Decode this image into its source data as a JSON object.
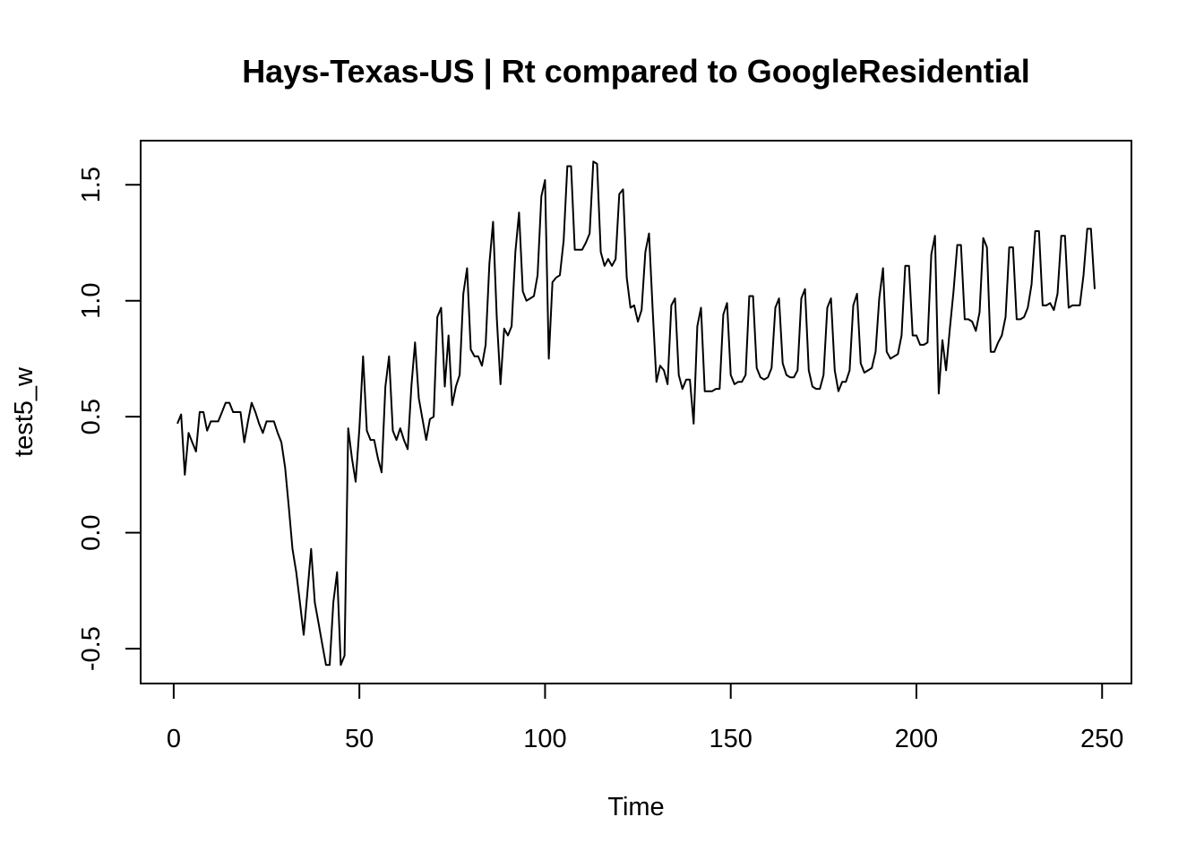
{
  "chart_data": {
    "type": "line",
    "title": "Hays-Texas-US | Rt compared to GoogleResidential",
    "xlabel": "Time",
    "ylabel": "test5_w",
    "xlim": [
      -8.9,
      257.9
    ],
    "ylim": [
      -0.65,
      1.69
    ],
    "xticks": [
      0,
      50,
      100,
      150,
      200,
      250
    ],
    "yticks": [
      -0.5,
      0.0,
      0.5,
      1.0,
      1.5
    ],
    "xtick_labels": [
      "0",
      "50",
      "100",
      "150",
      "200",
      "250"
    ],
    "ytick_labels": [
      "-0.5",
      "0.0",
      "0.5",
      "1.0",
      "1.5"
    ],
    "grid": false,
    "legend": "none",
    "series": [
      {
        "x": [
          1,
          2,
          3,
          4,
          5,
          6,
          7,
          8,
          9,
          10,
          11,
          12,
          13,
          14,
          15,
          16,
          17,
          18,
          19,
          20,
          21,
          22,
          23,
          24,
          25,
          26,
          27,
          28,
          29,
          30,
          31,
          32,
          33,
          34,
          35,
          36,
          37,
          38,
          39,
          40,
          41,
          42,
          43,
          44,
          45,
          46,
          47,
          48,
          49,
          50,
          51,
          52,
          53,
          54,
          55,
          56,
          57,
          58,
          59,
          60,
          61,
          62,
          63,
          64,
          65,
          66,
          67,
          68,
          69,
          70,
          71,
          72,
          73,
          74,
          75,
          76,
          77,
          78,
          79,
          80,
          81,
          82,
          83,
          84,
          85,
          86,
          87,
          88,
          89,
          90,
          91,
          92,
          93,
          94,
          95,
          96,
          97,
          98,
          99,
          100,
          101,
          102,
          103,
          104,
          105,
          106,
          107,
          108,
          109,
          110,
          111,
          112,
          113,
          114,
          115,
          116,
          117,
          118,
          119,
          120,
          121,
          122,
          123,
          124,
          125,
          126,
          127,
          128,
          129,
          130,
          131,
          132,
          133,
          134,
          135,
          136,
          137,
          138,
          139,
          140,
          141,
          142,
          143,
          144,
          145,
          146,
          147,
          148,
          149,
          150,
          151,
          152,
          153,
          154,
          155,
          156,
          157,
          158,
          159,
          160,
          161,
          162,
          163,
          164,
          165,
          166,
          167,
          168,
          169,
          170,
          171,
          172,
          173,
          174,
          175,
          176,
          177,
          178,
          179,
          180,
          181,
          182,
          183,
          184,
          185,
          186,
          187,
          188,
          189,
          190,
          191,
          192,
          193,
          194,
          195,
          196,
          197,
          198,
          199,
          200,
          201,
          202,
          203,
          204,
          205,
          206,
          207,
          208,
          209,
          210,
          211,
          212,
          213,
          214,
          215,
          216,
          217,
          218,
          219,
          220,
          221,
          222,
          223,
          224,
          225,
          226,
          227,
          228,
          229,
          230,
          231,
          232,
          233,
          234,
          235,
          236,
          237,
          238,
          239,
          240,
          241,
          242,
          243,
          244,
          245,
          246,
          247,
          248
        ],
        "values": [
          0.47,
          0.51,
          0.25,
          0.43,
          0.39,
          0.35,
          0.52,
          0.52,
          0.44,
          0.48,
          0.48,
          0.48,
          0.52,
          0.56,
          0.56,
          0.52,
          0.52,
          0.52,
          0.39,
          0.48,
          0.56,
          0.52,
          0.47,
          0.43,
          0.48,
          0.48,
          0.48,
          0.43,
          0.39,
          0.28,
          0.11,
          -0.07,
          -0.17,
          -0.3,
          -0.44,
          -0.26,
          -0.07,
          -0.3,
          -0.39,
          -0.48,
          -0.57,
          -0.57,
          -0.3,
          -0.17,
          -0.57,
          -0.53,
          0.45,
          0.32,
          0.22,
          0.45,
          0.76,
          0.44,
          0.4,
          0.4,
          0.32,
          0.26,
          0.63,
          0.76,
          0.44,
          0.4,
          0.45,
          0.4,
          0.36,
          0.63,
          0.82,
          0.58,
          0.49,
          0.4,
          0.49,
          0.5,
          0.93,
          0.97,
          0.63,
          0.85,
          0.55,
          0.63,
          0.68,
          1.03,
          1.14,
          0.79,
          0.76,
          0.76,
          0.72,
          0.81,
          1.16,
          1.34,
          0.93,
          0.64,
          0.88,
          0.85,
          0.89,
          1.21,
          1.38,
          1.04,
          1.0,
          1.01,
          1.02,
          1.11,
          1.45,
          1.52,
          0.75,
          1.08,
          1.1,
          1.11,
          1.26,
          1.58,
          1.58,
          1.22,
          1.22,
          1.22,
          1.25,
          1.29,
          1.6,
          1.59,
          1.21,
          1.15,
          1.18,
          1.15,
          1.18,
          1.46,
          1.48,
          1.1,
          0.97,
          0.98,
          0.91,
          0.96,
          1.21,
          1.29,
          0.95,
          0.65,
          0.72,
          0.7,
          0.64,
          0.98,
          1.01,
          0.68,
          0.62,
          0.66,
          0.66,
          0.47,
          0.89,
          0.97,
          0.61,
          0.61,
          0.61,
          0.62,
          0.62,
          0.94,
          0.99,
          0.68,
          0.64,
          0.65,
          0.65,
          0.68,
          1.02,
          1.02,
          0.71,
          0.67,
          0.66,
          0.67,
          0.71,
          0.97,
          1.01,
          0.73,
          0.68,
          0.67,
          0.67,
          0.7,
          1.01,
          1.05,
          0.7,
          0.63,
          0.62,
          0.62,
          0.68,
          0.97,
          1.01,
          0.7,
          0.61,
          0.65,
          0.65,
          0.7,
          0.98,
          1.03,
          0.73,
          0.69,
          0.7,
          0.71,
          0.78,
          1.01,
          1.14,
          0.78,
          0.75,
          0.76,
          0.77,
          0.85,
          1.15,
          1.15,
          0.85,
          0.85,
          0.81,
          0.81,
          0.82,
          1.2,
          1.28,
          0.6,
          0.83,
          0.7,
          0.88,
          1.04,
          1.24,
          1.24,
          0.92,
          0.92,
          0.91,
          0.87,
          0.95,
          1.27,
          1.23,
          0.78,
          0.78,
          0.82,
          0.85,
          0.93,
          1.23,
          1.23,
          0.92,
          0.92,
          0.93,
          0.97,
          1.07,
          1.3,
          1.3,
          0.98,
          0.98,
          0.99,
          0.96,
          1.03,
          1.28,
          1.28,
          0.97,
          0.98,
          0.98,
          0.98,
          1.11,
          1.31,
          1.31,
          1.05
        ]
      }
    ]
  }
}
